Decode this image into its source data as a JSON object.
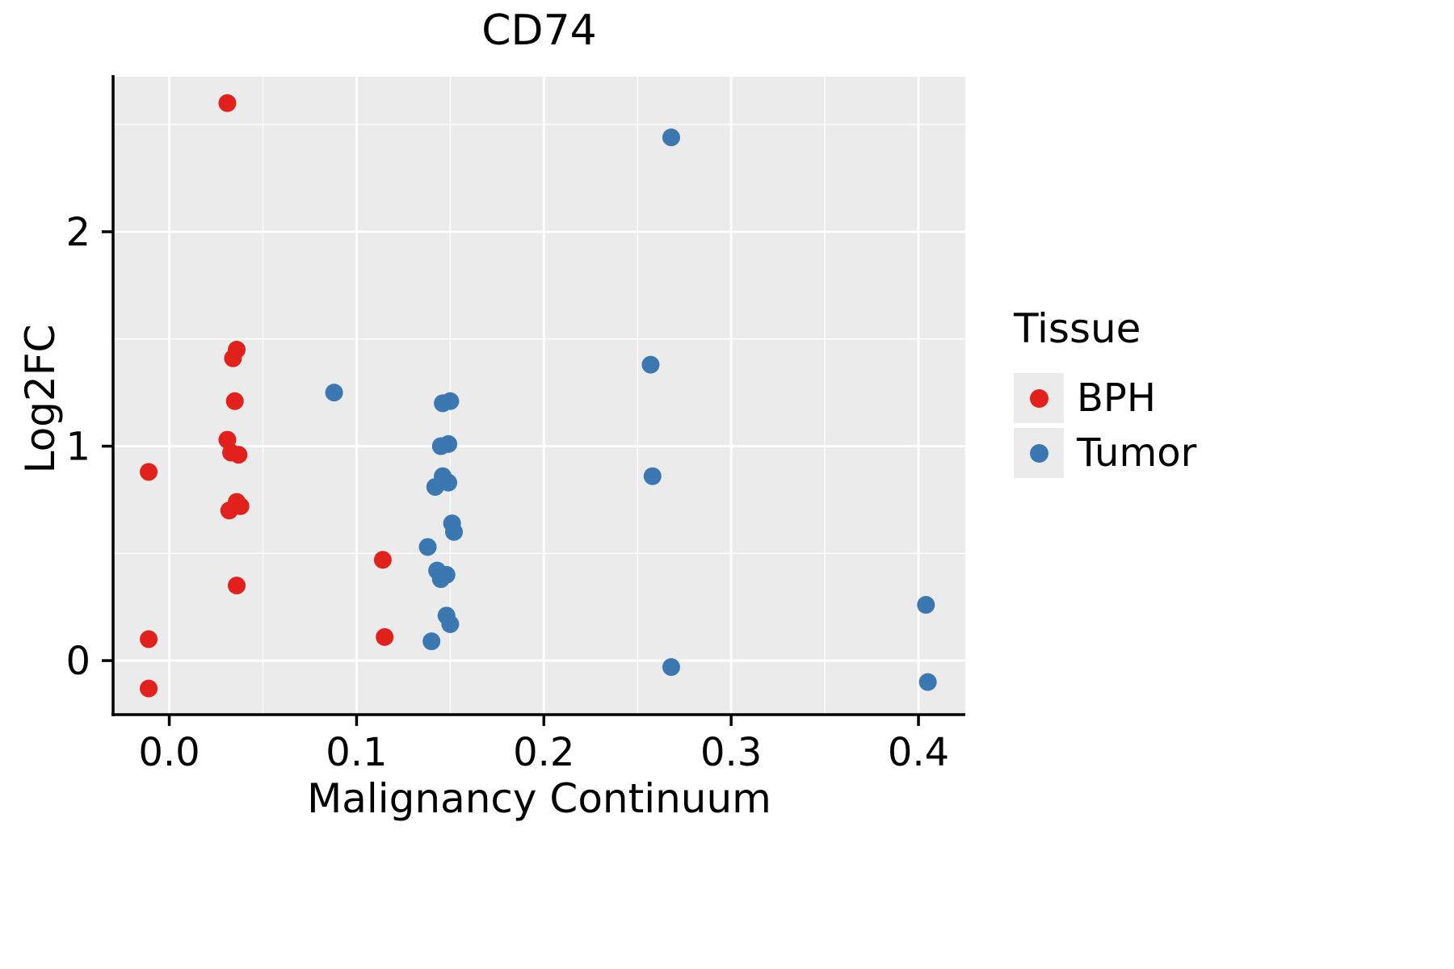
{
  "title": "CD74",
  "legend": {
    "title": "Tissue",
    "items": [
      {
        "label": "BPH",
        "color": "#E3211C"
      },
      {
        "label": "Tumor",
        "color": "#3B77B0"
      }
    ]
  },
  "chart_data": {
    "type": "scatter",
    "title": "CD74",
    "xlabel": "Malignancy Continuum",
    "ylabel": "Log2FC",
    "xlim": [
      -0.03,
      0.425
    ],
    "ylim": [
      -0.252,
      2.723
    ],
    "x_ticks": [
      0.0,
      0.1,
      0.2,
      0.3,
      0.4
    ],
    "x_tick_labels": [
      "0.0",
      "0.1",
      "0.2",
      "0.3",
      "0.4"
    ],
    "y_ticks": [
      0,
      1,
      2
    ],
    "y_tick_labels": [
      "0",
      "1",
      "2"
    ],
    "x_minor": [
      0.05,
      0.15,
      0.25,
      0.35
    ],
    "y_minor": [
      0.5,
      1.5,
      2.5
    ],
    "grid": true,
    "panel_bg": "#EBEBEB",
    "grid_color": "#FFFFFF",
    "legend_position": "right",
    "point_radius": 11,
    "series": [
      {
        "name": "BPH",
        "color": "#E3211C",
        "points": [
          [
            0.031,
            2.6
          ],
          [
            -0.011,
            0.88
          ],
          [
            -0.011,
            0.1
          ],
          [
            -0.011,
            -0.13
          ],
          [
            0.036,
            1.45
          ],
          [
            0.034,
            1.41
          ],
          [
            0.035,
            1.21
          ],
          [
            0.031,
            1.03
          ],
          [
            0.033,
            0.97
          ],
          [
            0.037,
            0.96
          ],
          [
            0.032,
            0.7
          ],
          [
            0.036,
            0.74
          ],
          [
            0.038,
            0.72
          ],
          [
            0.036,
            0.35
          ],
          [
            0.114,
            0.47
          ],
          [
            0.115,
            0.11
          ]
        ]
      },
      {
        "name": "Tumor",
        "color": "#3B77B0",
        "points": [
          [
            0.268,
            2.44
          ],
          [
            0.088,
            1.25
          ],
          [
            0.257,
            1.38
          ],
          [
            0.258,
            0.86
          ],
          [
            0.146,
            1.2
          ],
          [
            0.15,
            1.21
          ],
          [
            0.145,
            1.0
          ],
          [
            0.149,
            1.01
          ],
          [
            0.142,
            0.81
          ],
          [
            0.146,
            0.86
          ],
          [
            0.149,
            0.83
          ],
          [
            0.151,
            0.64
          ],
          [
            0.152,
            0.6
          ],
          [
            0.138,
            0.53
          ],
          [
            0.143,
            0.42
          ],
          [
            0.145,
            0.38
          ],
          [
            0.148,
            0.4
          ],
          [
            0.148,
            0.21
          ],
          [
            0.15,
            0.17
          ],
          [
            0.14,
            0.09
          ],
          [
            0.268,
            -0.03
          ],
          [
            0.404,
            0.26
          ],
          [
            0.405,
            -0.1
          ]
        ]
      }
    ]
  }
}
